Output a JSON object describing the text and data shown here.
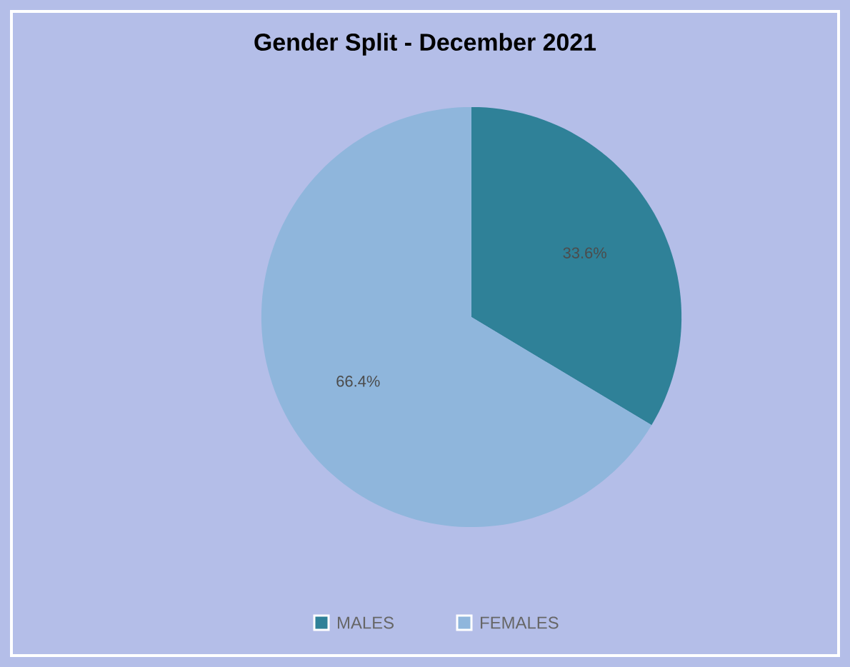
{
  "chart_data": {
    "type": "pie",
    "title": "Gender Split - December 2021",
    "categories": [
      "MALES",
      "FEMALES"
    ],
    "values": [
      33.6,
      66.4
    ],
    "colors": [
      "#2f8198",
      "#8fb6dc"
    ],
    "value_labels": [
      "33.6%",
      "66.4%"
    ],
    "legend": "bottom"
  }
}
